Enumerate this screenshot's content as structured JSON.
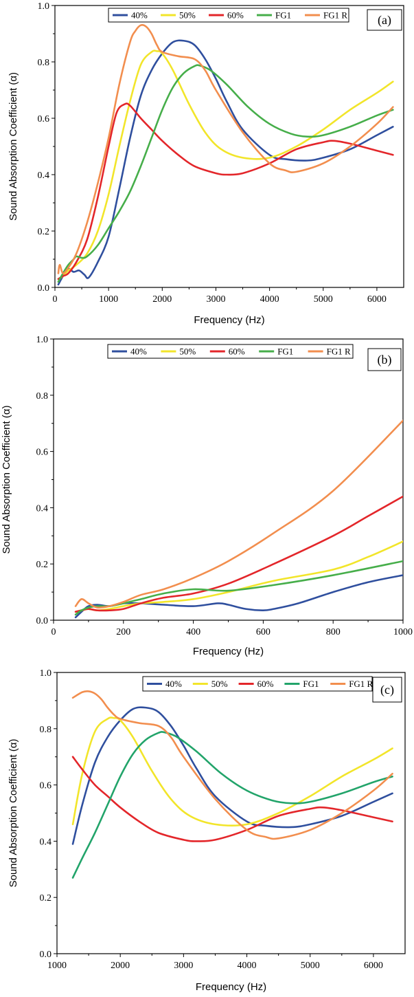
{
  "colors": {
    "40%": "#2f4f9e",
    "50%": "#f2e52a",
    "60%": "#e3262a",
    "FG1": "#46ae4a",
    "FG1 R": "#f28e4e",
    "FG1_c": "#22a46a"
  },
  "chart_data": [
    {
      "type": "line",
      "panel_label": "(a)",
      "xlabel": "Frequency (Hz)",
      "ylabel": "Sound Absorption Coefficient (α)",
      "xlim": [
        0,
        6500
      ],
      "ylim": [
        0,
        1.0
      ],
      "xticks": [
        0,
        1000,
        2000,
        3000,
        4000,
        5000,
        6000
      ],
      "xtick_labels": [
        "0",
        "1000",
        "2000",
        "3000",
        "4000",
        "5000",
        "6000"
      ],
      "yticks": [
        0,
        0.2,
        0.4,
        0.6,
        0.8,
        1.0
      ],
      "ytick_labels": [
        "0.0",
        "0.2",
        "0.4",
        "0.6",
        "0.8",
        "1.0"
      ],
      "legend": {
        "placement": "top-center",
        "entries": [
          "40%",
          "50%",
          "60%",
          "FG1",
          "FG1 R"
        ]
      },
      "series": [
        {
          "name": "40%",
          "color": "#2f4f9e",
          "x": [
            63,
            150,
            250,
            350,
            450,
            550,
            630,
            800,
            1000,
            1200,
            1400,
            1600,
            1800,
            2000,
            2200,
            2400,
            2600,
            2800,
            3000,
            3200,
            3500,
            4000,
            4300,
            4700,
            5000,
            5500,
            6000,
            6300
          ],
          "y": [
            0.01,
            0.04,
            0.065,
            0.055,
            0.06,
            0.045,
            0.035,
            0.09,
            0.18,
            0.35,
            0.53,
            0.68,
            0.77,
            0.83,
            0.87,
            0.875,
            0.86,
            0.81,
            0.74,
            0.66,
            0.56,
            0.47,
            0.455,
            0.45,
            0.46,
            0.49,
            0.54,
            0.57
          ]
        },
        {
          "name": "50%",
          "color": "#f2e52a",
          "x": [
            63,
            150,
            250,
            400,
            600,
            800,
            1000,
            1200,
            1400,
            1600,
            1800,
            1900,
            2000,
            2200,
            2500,
            2800,
            3100,
            3500,
            4000,
            4500,
            5000,
            5500,
            6000,
            6300
          ],
          "y": [
            0.03,
            0.04,
            0.06,
            0.08,
            0.12,
            0.2,
            0.33,
            0.5,
            0.66,
            0.79,
            0.835,
            0.838,
            0.83,
            0.77,
            0.65,
            0.55,
            0.49,
            0.46,
            0.46,
            0.5,
            0.56,
            0.63,
            0.69,
            0.73
          ]
        },
        {
          "name": "60%",
          "color": "#e3262a",
          "x": [
            63,
            150,
            250,
            400,
            600,
            800,
            1000,
            1150,
            1300,
            1400,
            1600,
            1800,
            2000,
            2300,
            2600,
            3000,
            3200,
            3500,
            4000,
            4500,
            5000,
            5200,
            5500,
            6000,
            6300
          ],
          "y": [
            0.03,
            0.04,
            0.05,
            0.09,
            0.17,
            0.32,
            0.5,
            0.62,
            0.65,
            0.645,
            0.6,
            0.56,
            0.52,
            0.47,
            0.43,
            0.405,
            0.4,
            0.405,
            0.44,
            0.49,
            0.515,
            0.52,
            0.51,
            0.485,
            0.47
          ]
        },
        {
          "name": "FG1",
          "color": "#46ae4a",
          "x": [
            63,
            150,
            250,
            350,
            400,
            500,
            600,
            800,
            1000,
            1200,
            1400,
            1600,
            1800,
            2000,
            2200,
            2400,
            2600,
            2700,
            2900,
            3200,
            3600,
            4000,
            4400,
            4700,
            5000,
            5500,
            6000,
            6300
          ],
          "y": [
            0.02,
            0.05,
            0.08,
            0.1,
            0.11,
            0.105,
            0.11,
            0.15,
            0.21,
            0.27,
            0.34,
            0.43,
            0.53,
            0.63,
            0.71,
            0.76,
            0.785,
            0.787,
            0.77,
            0.72,
            0.64,
            0.58,
            0.545,
            0.535,
            0.54,
            0.57,
            0.61,
            0.63
          ]
        },
        {
          "name": "FG1 R",
          "color": "#f28e4e",
          "x": [
            63,
            90,
            150,
            250,
            400,
            600,
            800,
            1000,
            1200,
            1400,
            1500,
            1600,
            1700,
            1800,
            1900,
            2000,
            2300,
            2600,
            2800,
            3000,
            3500,
            4000,
            4300,
            4500,
            5000,
            5500,
            6000,
            6300
          ],
          "y": [
            0.05,
            0.08,
            0.05,
            0.07,
            0.12,
            0.23,
            0.37,
            0.53,
            0.72,
            0.87,
            0.91,
            0.93,
            0.925,
            0.9,
            0.86,
            0.835,
            0.82,
            0.81,
            0.77,
            0.7,
            0.55,
            0.44,
            0.415,
            0.41,
            0.44,
            0.5,
            0.58,
            0.64
          ]
        }
      ]
    },
    {
      "type": "line",
      "panel_label": "(b)",
      "xlabel": "Frequency (Hz)",
      "ylabel": "Sound Absorption Coefficient (α)",
      "xlim": [
        0,
        1000
      ],
      "ylim": [
        0,
        1.0
      ],
      "xticks": [
        0,
        200,
        400,
        600,
        800,
        1000
      ],
      "xtick_labels": [
        "0",
        "200",
        "400",
        "600",
        "800",
        "1000"
      ],
      "yticks": [
        0,
        0.2,
        0.4,
        0.6,
        0.8,
        1.0
      ],
      "ytick_labels": [
        "0.0",
        "0.2",
        "0.4",
        "0.6",
        "0.8",
        "1.0"
      ],
      "legend": {
        "placement": "top-center",
        "entries": [
          "40%",
          "50%",
          "60%",
          "FG1",
          "FG1 R"
        ]
      },
      "series": [
        {
          "name": "40%",
          "color": "#2f4f9e",
          "x": [
            63,
            80,
            100,
            125,
            160,
            200,
            250,
            315,
            400,
            470,
            500,
            550,
            600,
            630,
            700,
            800,
            900,
            1000
          ],
          "y": [
            0.01,
            0.03,
            0.05,
            0.055,
            0.05,
            0.06,
            0.06,
            0.055,
            0.05,
            0.06,
            0.055,
            0.04,
            0.035,
            0.04,
            0.06,
            0.1,
            0.135,
            0.16
          ]
        },
        {
          "name": "50%",
          "color": "#f2e52a",
          "x": [
            63,
            80,
            100,
            125,
            160,
            200,
            250,
            315,
            400,
            500,
            630,
            800,
            900,
            1000
          ],
          "y": [
            0.03,
            0.035,
            0.04,
            0.035,
            0.04,
            0.05,
            0.06,
            0.065,
            0.075,
            0.1,
            0.14,
            0.18,
            0.225,
            0.28
          ]
        },
        {
          "name": "60%",
          "color": "#e3262a",
          "x": [
            63,
            80,
            100,
            125,
            160,
            200,
            250,
            315,
            400,
            500,
            630,
            800,
            900,
            1000
          ],
          "y": [
            0.03,
            0.035,
            0.04,
            0.035,
            0.035,
            0.04,
            0.06,
            0.08,
            0.095,
            0.13,
            0.2,
            0.3,
            0.37,
            0.44
          ]
        },
        {
          "name": "FG1",
          "color": "#46ae4a",
          "x": [
            63,
            80,
            100,
            125,
            160,
            200,
            250,
            315,
            400,
            500,
            630,
            800,
            1000
          ],
          "y": [
            0.02,
            0.035,
            0.045,
            0.05,
            0.05,
            0.06,
            0.075,
            0.095,
            0.11,
            0.105,
            0.125,
            0.16,
            0.21
          ]
        },
        {
          "name": "FG1 R",
          "color": "#f28e4e",
          "x": [
            63,
            80,
            100,
            125,
            160,
            200,
            250,
            315,
            400,
            500,
            630,
            800,
            1000
          ],
          "y": [
            0.05,
            0.075,
            0.06,
            0.045,
            0.05,
            0.065,
            0.09,
            0.11,
            0.15,
            0.21,
            0.31,
            0.46,
            0.71
          ]
        }
      ]
    },
    {
      "type": "line",
      "panel_label": "(c)",
      "xlabel": "Frequency (Hz)",
      "ylabel": "Sound Absorption Coefficient (α)",
      "xlim": [
        1000,
        6500
      ],
      "ylim": [
        0,
        1.0
      ],
      "xticks": [
        1000,
        2000,
        3000,
        4000,
        5000,
        6000
      ],
      "xtick_labels": [
        "1000",
        "2000",
        "3000",
        "4000",
        "5000",
        "6000"
      ],
      "yticks": [
        0,
        0.2,
        0.4,
        0.6,
        0.8,
        1.0
      ],
      "ytick_labels": [
        "0.0",
        "0.2",
        "0.4",
        "0.6",
        "0.8",
        "1.0"
      ],
      "legend": {
        "placement": "top-center",
        "entries": [
          "40%",
          "50%",
          "60%",
          "FG1",
          "FG1 R"
        ]
      },
      "series": [
        {
          "name": "40%",
          "color": "#2f4f9e",
          "x": [
            1250,
            1400,
            1600,
            1800,
            2000,
            2200,
            2400,
            2600,
            2800,
            3000,
            3200,
            3500,
            4000,
            4300,
            4700,
            5000,
            5500,
            6000,
            6300
          ],
          "y": [
            0.39,
            0.53,
            0.68,
            0.77,
            0.83,
            0.87,
            0.875,
            0.86,
            0.81,
            0.74,
            0.66,
            0.56,
            0.47,
            0.455,
            0.45,
            0.46,
            0.49,
            0.54,
            0.57
          ]
        },
        {
          "name": "50%",
          "color": "#f2e52a",
          "x": [
            1250,
            1400,
            1600,
            1800,
            1900,
            2000,
            2200,
            2500,
            2800,
            3100,
            3500,
            4000,
            4500,
            5000,
            5500,
            6000,
            6300
          ],
          "y": [
            0.46,
            0.64,
            0.79,
            0.835,
            0.838,
            0.83,
            0.77,
            0.65,
            0.55,
            0.49,
            0.46,
            0.46,
            0.5,
            0.56,
            0.63,
            0.69,
            0.73
          ]
        },
        {
          "name": "60%",
          "color": "#e3262a",
          "x": [
            1250,
            1400,
            1600,
            1800,
            2000,
            2300,
            2600,
            3000,
            3200,
            3500,
            4000,
            4500,
            5000,
            5200,
            5500,
            6000,
            6300
          ],
          "y": [
            0.7,
            0.655,
            0.6,
            0.56,
            0.52,
            0.47,
            0.43,
            0.405,
            0.4,
            0.405,
            0.44,
            0.49,
            0.515,
            0.52,
            0.51,
            0.485,
            0.47
          ]
        },
        {
          "name": "FG1",
          "color": "#22a46a",
          "x": [
            1250,
            1400,
            1600,
            1800,
            2000,
            2200,
            2400,
            2600,
            2700,
            2900,
            3200,
            3600,
            4000,
            4400,
            4700,
            5000,
            5500,
            6000,
            6300
          ],
          "y": [
            0.27,
            0.34,
            0.43,
            0.53,
            0.63,
            0.71,
            0.76,
            0.785,
            0.787,
            0.77,
            0.72,
            0.64,
            0.58,
            0.545,
            0.535,
            0.54,
            0.57,
            0.61,
            0.63
          ]
        },
        {
          "name": "FG1 R",
          "color": "#f28e4e",
          "x": [
            1250,
            1400,
            1500,
            1600,
            1700,
            1800,
            1900,
            2000,
            2300,
            2600,
            2800,
            3000,
            3500,
            4000,
            4300,
            4500,
            5000,
            5500,
            6000,
            6300
          ],
          "y": [
            0.91,
            0.93,
            0.933,
            0.925,
            0.905,
            0.875,
            0.85,
            0.835,
            0.82,
            0.81,
            0.77,
            0.7,
            0.55,
            0.44,
            0.415,
            0.41,
            0.44,
            0.5,
            0.58,
            0.64
          ]
        }
      ]
    }
  ]
}
